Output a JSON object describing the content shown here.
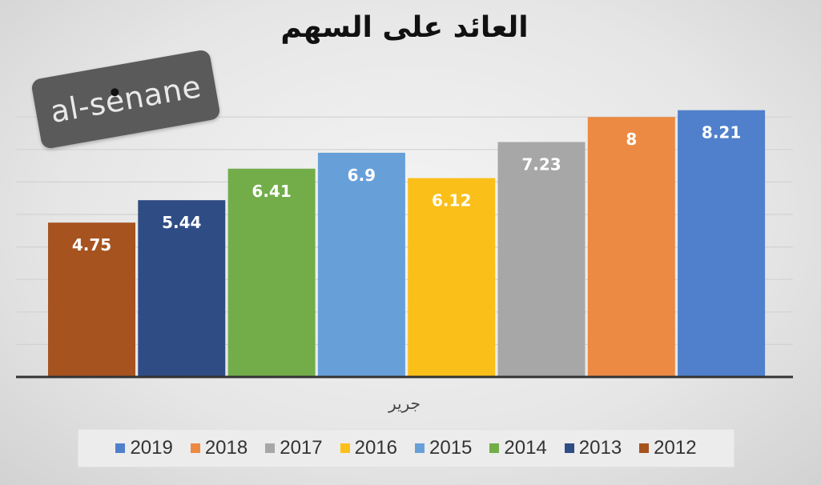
{
  "chart_data": {
    "type": "bar",
    "title": "العائد على السهم",
    "xlabel": "جرير",
    "ylabel": "",
    "categories": [
      "جرير"
    ],
    "ylim": [
      0,
      8.5
    ],
    "grid": true,
    "legend_position": "bottom",
    "series": [
      {
        "name": "2012",
        "values": [
          4.75
        ],
        "color": "#a6531f"
      },
      {
        "name": "2013",
        "values": [
          5.44
        ],
        "color": "#2f4c85"
      },
      {
        "name": "2014",
        "values": [
          6.41
        ],
        "color": "#72ad4a"
      },
      {
        "name": "2015",
        "values": [
          6.9
        ],
        "color": "#67a0d9"
      },
      {
        "name": "2016",
        "values": [
          6.12
        ],
        "color": "#fbbf1a"
      },
      {
        "name": "2017",
        "values": [
          7.23
        ],
        "color": "#a7a7a7"
      },
      {
        "name": "2018",
        "values": [
          8
        ],
        "color": "#ec8a43"
      },
      {
        "name": "2019",
        "values": [
          8.21
        ],
        "color": "#5080cc"
      }
    ],
    "legend_order": [
      "2019",
      "2018",
      "2017",
      "2016",
      "2015",
      "2014",
      "2013",
      "2012"
    ]
  },
  "watermark": {
    "text": "al-senane"
  }
}
